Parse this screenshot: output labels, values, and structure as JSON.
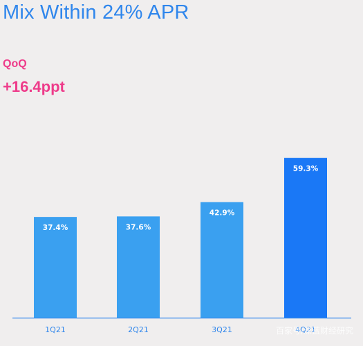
{
  "header": {
    "title": "Mix Within 24% APR",
    "qoq_label": "QoQ",
    "qoq_value": "+16.4ppt"
  },
  "chart_data": {
    "type": "bar",
    "title": "Mix Within 24% APR",
    "categories": [
      "1Q21",
      "2Q21",
      "3Q21",
      "4Q21"
    ],
    "values": [
      37.4,
      37.6,
      42.9,
      59.3
    ],
    "value_labels": [
      "37.4%",
      "37.6%",
      "42.9%",
      "59.3%"
    ],
    "xlabel": "",
    "ylabel": "",
    "ylim": [
      0,
      100
    ],
    "grid": false,
    "legend": "none",
    "colors": [
      "#3aa0f0",
      "#3aa0f0",
      "#3aa0f0",
      "#1a78f6"
    ],
    "axis_color": "#2f86ec"
  },
  "watermark": "百家号/深蓝财经研究"
}
